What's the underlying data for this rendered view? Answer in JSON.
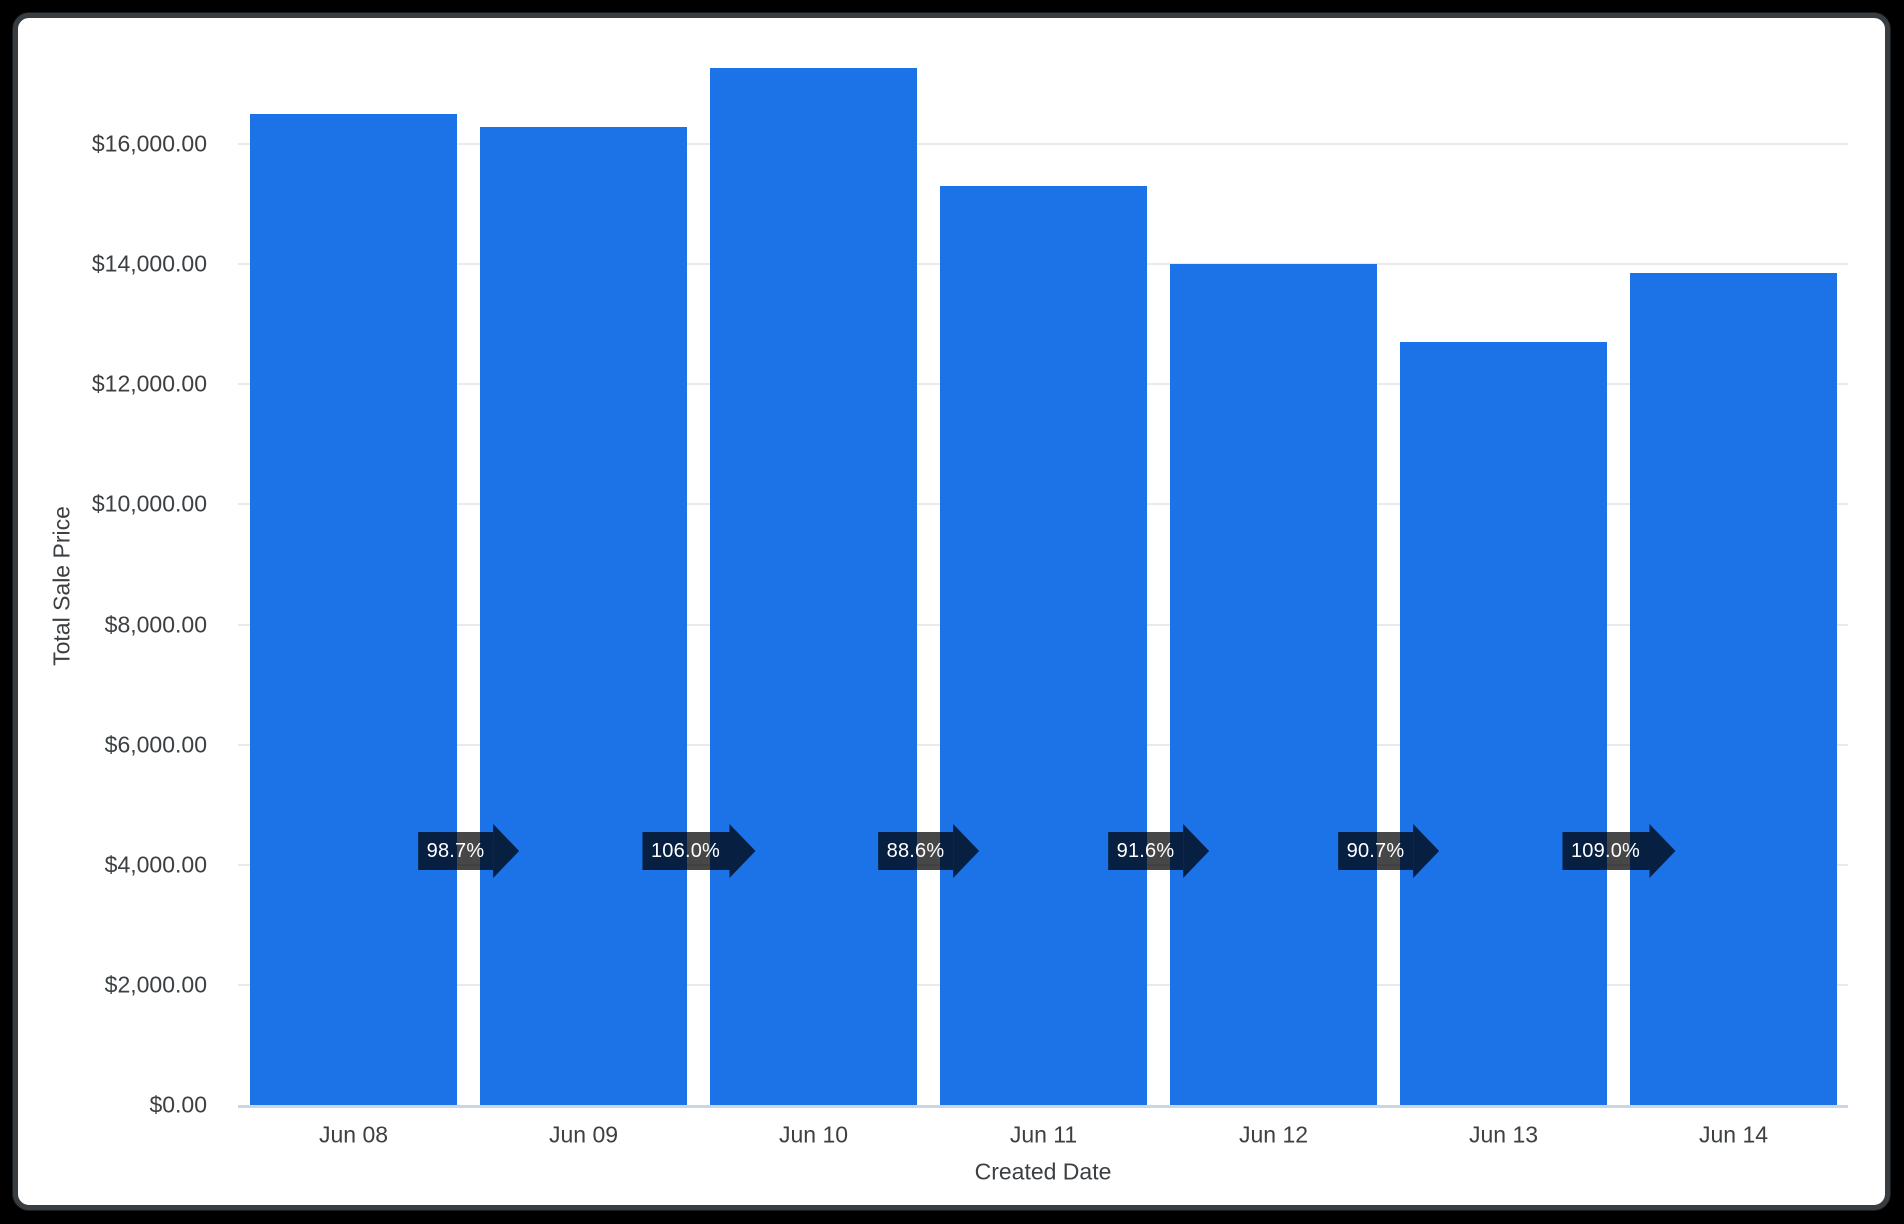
{
  "frame": {
    "page_background": "#000000",
    "card_background": "#ffffff",
    "card_border_color": "#383d42"
  },
  "chart_data": {
    "type": "bar",
    "title": "",
    "xlabel": "Created Date",
    "ylabel": "Total Sale Price",
    "categories": [
      "Jun 08",
      "Jun 09",
      "Jun 10",
      "Jun 11",
      "Jun 12",
      "Jun 13",
      "Jun 14"
    ],
    "values": [
      16500,
      16290,
      17265,
      15295,
      14010,
      12705,
      13850
    ],
    "series_name": "Total Sale Price",
    "y_ticks": [
      "$16,000.00",
      "$14,000.00",
      "$12,000.00",
      "$10,000.00",
      "$8,000.00",
      "$6,000.00",
      "$4,000.00",
      "$2,000.00",
      "$0.00"
    ],
    "y_tick_values": [
      16000,
      14000,
      12000,
      10000,
      8000,
      6000,
      4000,
      2000,
      0
    ],
    "ylim": [
      0,
      17400
    ],
    "grid": true,
    "legend_position": "none",
    "bar_color": "#1c73e8",
    "gridline_color": "#e9eaeb",
    "baseline_color": "#ccd5e2",
    "label_color": "#3c4043",
    "period_over_period_badges": {
      "shape": "right-arrow",
      "background": "rgba(0,0,0,0.72)",
      "text_color": "#ffffff",
      "values": [
        "98.7%",
        "106.0%",
        "88.6%",
        "91.6%",
        "90.7%",
        "109.0%"
      ]
    }
  }
}
